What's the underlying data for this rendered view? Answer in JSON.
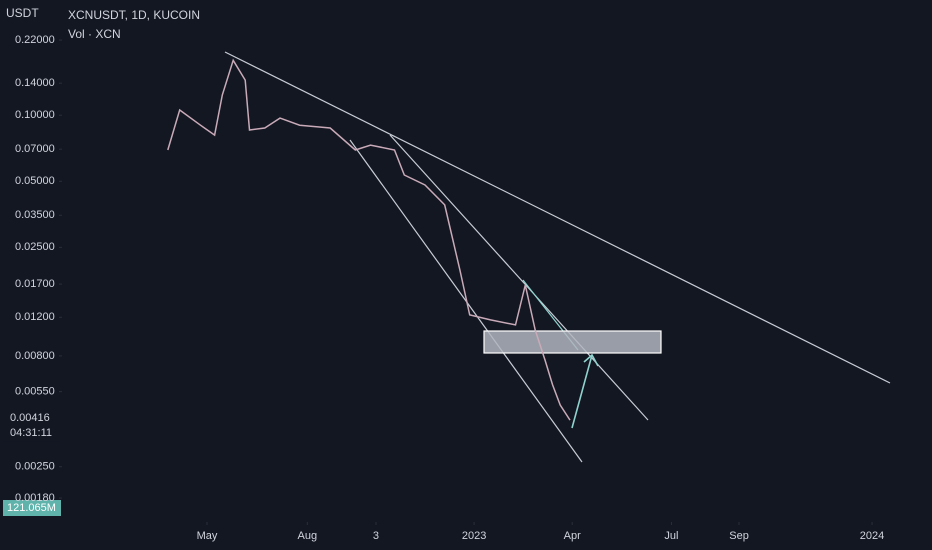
{
  "chart_data": {
    "type": "line",
    "title": "XCNUSDT, 1D, KUCOIN",
    "subtitle": "Vol · XCN",
    "y_label": "USDT",
    "log_scale": true,
    "grid": false,
    "x": [
      -36,
      -25,
      -6,
      7,
      14,
      24,
      35,
      39,
      53,
      67,
      85,
      113,
      136,
      150,
      172,
      181,
      200,
      218,
      232,
      241,
      260,
      283,
      292,
      301,
      310,
      317,
      324,
      333
    ],
    "series": [
      {
        "name": "XCNUSDT",
        "color": "#c9aab8",
        "values": [
          0.0694,
          0.1056,
          0.09,
          0.0812,
          0.1236,
          0.178,
          0.1446,
          0.0856,
          0.0874,
          0.097,
          0.09,
          0.0874,
          0.0694,
          0.0731,
          0.0694,
          0.0534,
          0.0481,
          0.039,
          0.0197,
          0.0123,
          0.01167,
          0.01107,
          0.01683,
          0.0105,
          0.00766,
          0.0059,
          0.00478,
          0.00408
        ]
      }
    ],
    "xlim": [
      -133,
      665
    ],
    "xticks": [
      {
        "value": 0,
        "label": "May"
      },
      {
        "value": 92,
        "label": "Aug"
      },
      {
        "value": 155,
        "label": "3"
      },
      {
        "value": 245,
        "label": "2023"
      },
      {
        "value": 335,
        "label": "Apr"
      },
      {
        "value": 426,
        "label": "Jul"
      },
      {
        "value": 488,
        "label": "Sep"
      },
      {
        "value": 610,
        "label": "2024"
      }
    ],
    "ylim": [
      0.0014,
      0.335
    ],
    "yticks": [
      {
        "value": 0.22,
        "label": "0.22000"
      },
      {
        "value": 0.14,
        "label": "0.14000"
      },
      {
        "value": 0.1,
        "label": "0.10000"
      },
      {
        "value": 0.07,
        "label": "0.07000"
      },
      {
        "value": 0.05,
        "label": "0.05000"
      },
      {
        "value": 0.035,
        "label": "0.03500"
      },
      {
        "value": 0.025,
        "label": "0.02500"
      },
      {
        "value": 0.017,
        "label": "0.01700"
      },
      {
        "value": 0.012,
        "label": "0.01200"
      },
      {
        "value": 0.008,
        "label": "0.00800"
      },
      {
        "value": 0.0055,
        "label": "0.00550"
      },
      {
        "value": 0.0025,
        "label": "0.00250"
      },
      {
        "value": 0.0018,
        "label": "0.00180"
      }
    ],
    "last_price": 0.00416,
    "countdown": "04:31:11",
    "volume_label": "121.065M"
  }
}
